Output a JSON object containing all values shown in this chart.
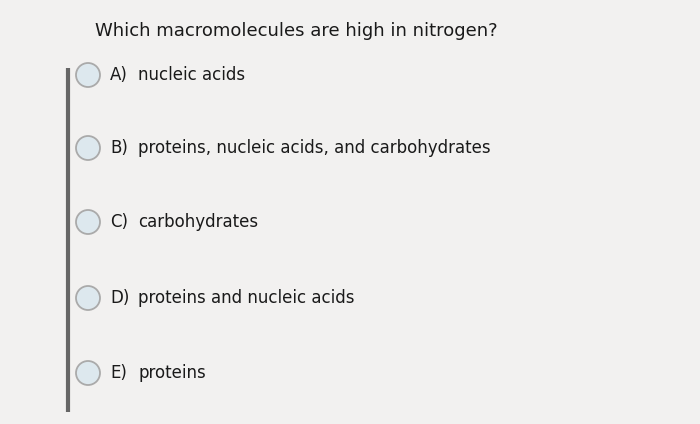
{
  "title": "Which macromolecules are high in nitrogen?",
  "options": [
    {
      "label": "A)",
      "text": "nucleic acids"
    },
    {
      "label": "B)",
      "text": "proteins, nucleic acids, and carbohydrates"
    },
    {
      "label": "C)",
      "text": "carbohydrates"
    },
    {
      "label": "D)",
      "text": "proteins and nucleic acids"
    },
    {
      "label": "E)",
      "text": "proteins"
    }
  ],
  "background_color": "#f2f1f0",
  "text_color": "#1a1a1a",
  "circle_edge_color": "#aaaaaa",
  "circle_fill_color": "#dde8ee",
  "left_bar_color": "#666666",
  "title_fontsize": 13.0,
  "option_fontsize": 12.0,
  "fig_width": 7.0,
  "fig_height": 4.24,
  "dpi": 100
}
